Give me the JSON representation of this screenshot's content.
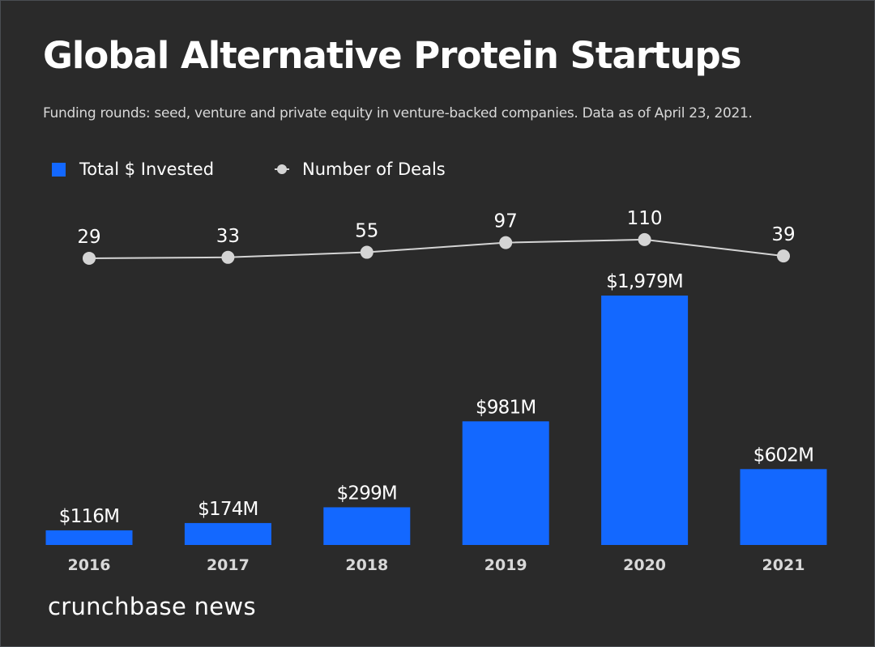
{
  "title": "Global Alternative Protein Startups",
  "subtitle": "Funding rounds: seed, venture and private equity in venture-backed companies. Data as of April 23, 2021.",
  "legend": [
    {
      "label": "Total $ Invested",
      "marker": "square",
      "color": "#1368ff"
    },
    {
      "label": "Number of Deals",
      "marker": "line-dot",
      "color": "#d4d4d4"
    }
  ],
  "brand": "crunchbase news",
  "chart_data": {
    "type": "bar",
    "title": "Global Alternative Protein Startups",
    "subtitle": "Funding rounds: seed, venture and private equity in venture-backed companies. Data as of April 23, 2021.",
    "categories": [
      "2016",
      "2017",
      "2018",
      "2019",
      "2020",
      "2021"
    ],
    "series": [
      {
        "name": "Total $ Invested",
        "type": "bar",
        "unit": "USD millions",
        "values": [
          116,
          174,
          299,
          981,
          1979,
          602
        ],
        "labels": [
          "$116M",
          "$174M",
          "$299M",
          "$981M",
          "$1,979M",
          "$602M"
        ],
        "color": "#1368ff"
      },
      {
        "name": "Number of Deals",
        "type": "line",
        "values": [
          29,
          33,
          55,
          97,
          110,
          39
        ],
        "labels": [
          "29",
          "33",
          "55",
          "97",
          "110",
          "39"
        ],
        "color": "#d4d4d4"
      }
    ],
    "xlabel": "",
    "ylabel": "",
    "grid": false,
    "legend_position": "top-left",
    "axes_visible": false
  }
}
